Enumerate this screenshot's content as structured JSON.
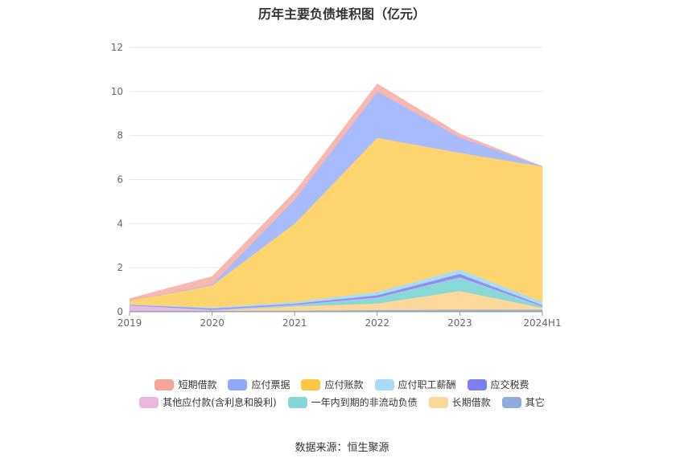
{
  "chart_data": {
    "type": "area",
    "title": "历年主要负债堆积图（亿元）",
    "categories": [
      "2019",
      "2020",
      "2021",
      "2022",
      "2023",
      "2024H1"
    ],
    "ylim": [
      0,
      12
    ],
    "yticks": [
      "0",
      "2",
      "4",
      "6",
      "8",
      "10",
      "12"
    ],
    "stacked": true,
    "grid": true,
    "legend_position": "bottom",
    "series": [
      {
        "name": "其它",
        "color": "#8fafdc",
        "values": [
          0.05,
          0.05,
          0.05,
          0.08,
          0.1,
          0.1
        ]
      },
      {
        "name": "长期借款",
        "color": "#fed89a",
        "values": [
          0.0,
          0.0,
          0.2,
          0.3,
          0.85,
          0.08
        ]
      },
      {
        "name": "一年内到期的非流动负债",
        "color": "#88d8d8",
        "values": [
          0.0,
          0.0,
          0.05,
          0.25,
          0.6,
          0.05
        ]
      },
      {
        "name": "其他应付款(含利息和股利)",
        "color": "#e8b8de",
        "values": [
          0.25,
          0.05,
          0.02,
          0.02,
          0.02,
          0.02
        ]
      },
      {
        "name": "应交税费",
        "color": "#9090f0",
        "values": [
          0.02,
          0.05,
          0.05,
          0.1,
          0.15,
          0.05
        ]
      },
      {
        "name": "应付职工薪酬",
        "color": "#a8dcf8",
        "values": [
          0.02,
          0.05,
          0.08,
          0.15,
          0.2,
          0.15
        ]
      },
      {
        "name": "应付账款",
        "color": "#fed46e",
        "values": [
          0.16,
          1.0,
          3.55,
          7.0,
          5.3,
          6.15
        ]
      },
      {
        "name": "应付票据",
        "color": "#a8bcfd",
        "values": [
          0.0,
          0.05,
          1.1,
          2.1,
          0.7,
          0.0
        ]
      },
      {
        "name": "短期借款",
        "color": "#f8b8b0",
        "values": [
          0.1,
          0.35,
          0.35,
          0.35,
          0.15,
          0.0
        ]
      }
    ]
  },
  "legend": {
    "row1": [
      {
        "label": "短期借款",
        "color": "#f7a59a"
      },
      {
        "label": "应付票据",
        "color": "#8fa9f8"
      },
      {
        "label": "应付账款",
        "color": "#fbc646"
      },
      {
        "label": "应付职工薪酬",
        "color": "#a6dcf8"
      },
      {
        "label": "应交税费",
        "color": "#7b7ff0"
      }
    ],
    "row2": [
      {
        "label": "其他应付款(含利息和股利)",
        "color": "#eab7dd"
      },
      {
        "label": "一年内到期的非流动负债",
        "color": "#86d6d6"
      },
      {
        "label": "长期借款",
        "color": "#fed89a"
      },
      {
        "label": "其它",
        "color": "#8faddc"
      }
    ]
  },
  "source": "数据来源：恒生聚源"
}
